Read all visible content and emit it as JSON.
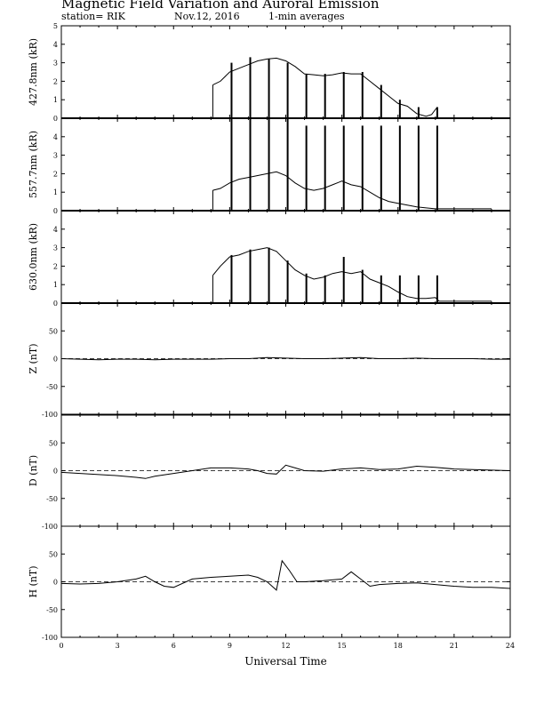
{
  "header": {
    "title": "Magnetic Field Variation and Auroral Emission",
    "station": "station= RIK",
    "date": "Nov.12, 2016",
    "averaging": "1-min averages"
  },
  "chart_data": {
    "type": "line",
    "xlabel": "Universal Time",
    "xlim": [
      0,
      24
    ],
    "xticks": [
      0,
      3,
      6,
      9,
      12,
      15,
      18,
      21,
      24
    ],
    "panels": [
      {
        "id": "p4278",
        "ylabel": "427.8nm (kR)",
        "ylim": [
          0,
          5
        ],
        "yticks": [
          0,
          1,
          2,
          3,
          4,
          5
        ],
        "zero_line": "solid",
        "series": {
          "x": [
            8.1,
            8.5,
            9.0,
            9.5,
            10.0,
            10.5,
            11.0,
            11.5,
            12.0,
            12.5,
            13.0,
            13.5,
            14.0,
            14.5,
            15.0,
            15.5,
            16.0,
            16.5,
            17.0,
            17.5,
            18.0,
            18.5,
            19.0,
            19.5,
            19.8,
            20.1
          ],
          "y": [
            1.8,
            2.0,
            2.5,
            2.7,
            2.9,
            3.1,
            3.2,
            3.25,
            3.1,
            2.8,
            2.4,
            2.35,
            2.3,
            2.35,
            2.45,
            2.4,
            2.4,
            2.0,
            1.6,
            1.2,
            0.8,
            0.65,
            0.25,
            0.1,
            0.2,
            0.6
          ]
        },
        "bars": [
          {
            "x": 9.1,
            "top": 3.0
          },
          {
            "x": 10.1,
            "top": 3.3
          },
          {
            "x": 11.1,
            "top": 3.2
          },
          {
            "x": 12.1,
            "top": 3.0
          },
          {
            "x": 13.1,
            "top": 2.4
          },
          {
            "x": 14.1,
            "top": 2.4
          },
          {
            "x": 15.1,
            "top": 2.5
          },
          {
            "x": 16.1,
            "top": 2.5
          },
          {
            "x": 17.1,
            "top": 1.8
          },
          {
            "x": 18.1,
            "top": 1.0
          },
          {
            "x": 19.1,
            "top": 0.6
          },
          {
            "x": 20.1,
            "top": 0.6
          }
        ]
      },
      {
        "id": "p5577",
        "ylabel": "557.7nm (kR)",
        "ylim": [
          0,
          5
        ],
        "yticks": [
          0,
          1,
          2,
          3,
          4
        ],
        "zero_line": "solid",
        "series": {
          "x": [
            8.1,
            8.5,
            9.0,
            9.5,
            10.0,
            10.5,
            11.0,
            11.5,
            12.0,
            12.5,
            13.0,
            13.5,
            14.0,
            14.5,
            15.0,
            15.5,
            16.0,
            16.5,
            17.0,
            17.5,
            18.0,
            18.5,
            19.0,
            19.5,
            20.0,
            20.2,
            23.0
          ],
          "y": [
            1.1,
            1.2,
            1.5,
            1.7,
            1.8,
            1.9,
            2.0,
            2.1,
            1.9,
            1.5,
            1.2,
            1.1,
            1.2,
            1.4,
            1.6,
            1.4,
            1.3,
            1.0,
            0.7,
            0.5,
            0.4,
            0.3,
            0.2,
            0.15,
            0.1,
            0.1,
            0.1
          ]
        },
        "bars": [
          {
            "x": 9.1,
            "top": 5.0
          },
          {
            "x": 10.1,
            "top": 5.0
          },
          {
            "x": 11.1,
            "top": 5.0
          },
          {
            "x": 12.1,
            "top": 5.0
          },
          {
            "x": 13.1,
            "top": 4.6
          },
          {
            "x": 14.1,
            "top": 4.6
          },
          {
            "x": 15.1,
            "top": 4.6
          },
          {
            "x": 16.1,
            "top": 4.6
          },
          {
            "x": 17.1,
            "top": 4.6
          },
          {
            "x": 18.1,
            "top": 4.6
          },
          {
            "x": 19.1,
            "top": 4.6
          },
          {
            "x": 20.1,
            "top": 4.6
          }
        ]
      },
      {
        "id": "p6300",
        "ylabel": "630.0nm (kR)",
        "ylim": [
          0,
          5
        ],
        "yticks": [
          0,
          1,
          2,
          3,
          4
        ],
        "zero_line": "solid",
        "series": {
          "x": [
            8.1,
            8.5,
            9.0,
            9.5,
            10.0,
            10.5,
            11.0,
            11.5,
            12.0,
            12.5,
            13.0,
            13.5,
            14.0,
            14.5,
            15.0,
            15.5,
            16.0,
            16.5,
            17.0,
            17.5,
            18.0,
            18.5,
            19.0,
            19.5,
            20.0,
            20.2,
            23.0
          ],
          "y": [
            1.5,
            2.0,
            2.5,
            2.6,
            2.8,
            2.9,
            3.0,
            2.8,
            2.3,
            1.8,
            1.5,
            1.3,
            1.4,
            1.6,
            1.7,
            1.6,
            1.7,
            1.3,
            1.1,
            0.9,
            0.6,
            0.35,
            0.25,
            0.25,
            0.3,
            0.1,
            0.1
          ]
        },
        "bars": [
          {
            "x": 9.1,
            "top": 2.6
          },
          {
            "x": 10.1,
            "top": 2.9
          },
          {
            "x": 11.1,
            "top": 3.0
          },
          {
            "x": 12.1,
            "top": 2.3
          },
          {
            "x": 13.1,
            "top": 1.6
          },
          {
            "x": 14.1,
            "top": 1.5
          },
          {
            "x": 15.1,
            "top": 2.5
          },
          {
            "x": 16.1,
            "top": 1.8
          },
          {
            "x": 17.1,
            "top": 1.5
          },
          {
            "x": 18.1,
            "top": 1.5
          },
          {
            "x": 19.1,
            "top": 1.5
          },
          {
            "x": 20.1,
            "top": 1.5
          }
        ]
      },
      {
        "id": "pZ",
        "ylabel": "Z (nT)",
        "ylim": [
          -100,
          100
        ],
        "yticks": [
          50,
          0,
          -50,
          -100
        ],
        "zero_line": "dashed",
        "series": {
          "x": [
            0,
            1,
            2,
            3,
            4,
            5,
            6,
            7,
            8,
            9,
            10,
            11,
            12,
            13,
            14,
            15,
            16,
            17,
            18,
            19,
            20,
            21,
            22,
            23,
            24
          ],
          "y": [
            0,
            -1,
            -2,
            -1,
            -1,
            -2,
            -1,
            -1,
            -1,
            0,
            0,
            2,
            1,
            0,
            0,
            1,
            2,
            0,
            0,
            1,
            0,
            0,
            0,
            -1,
            -1
          ]
        }
      },
      {
        "id": "pD",
        "ylabel": "D (nT)",
        "ylim": [
          -100,
          100
        ],
        "yticks": [
          50,
          0,
          -50,
          -100
        ],
        "zero_line": "dashed",
        "series": {
          "x": [
            0,
            1,
            2,
            3,
            4,
            4.5,
            5,
            6,
            7,
            8,
            9,
            10,
            10.5,
            11,
            11.5,
            12,
            12.5,
            13,
            14,
            15,
            16,
            17,
            18,
            19,
            20,
            21,
            22,
            23,
            24
          ],
          "y": [
            -3,
            -5,
            -7,
            -9,
            -12,
            -14,
            -10,
            -5,
            0,
            5,
            5,
            3,
            0,
            -5,
            -6,
            10,
            5,
            0,
            -1,
            3,
            5,
            2,
            3,
            8,
            6,
            3,
            2,
            1,
            0
          ]
        }
      },
      {
        "id": "pH",
        "ylabel": "H (nT)",
        "ylim": [
          -100,
          100
        ],
        "yticks": [
          50,
          0,
          -50,
          -100
        ],
        "zero_line": "dashed",
        "series": {
          "x": [
            0,
            1,
            2,
            3,
            4,
            4.5,
            5,
            5.5,
            6,
            7,
            8,
            9,
            10,
            10.5,
            11,
            11.5,
            11.8,
            12.2,
            12.6,
            13,
            14,
            15,
            15.5,
            16,
            16.5,
            17,
            18,
            19,
            20,
            21,
            22,
            23,
            24
          ],
          "y": [
            -3,
            -4,
            -3,
            0,
            5,
            10,
            0,
            -8,
            -10,
            5,
            8,
            10,
            12,
            8,
            0,
            -15,
            38,
            20,
            0,
            0,
            2,
            5,
            18,
            5,
            -8,
            -5,
            -3,
            -2,
            -5,
            -8,
            -10,
            -10,
            -12
          ]
        }
      }
    ]
  }
}
